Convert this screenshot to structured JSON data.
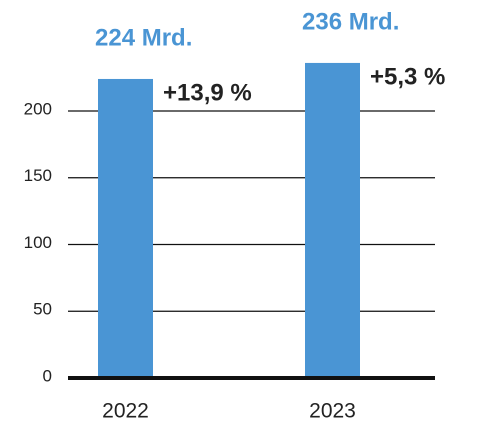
{
  "chart_data": {
    "type": "bar",
    "categories": [
      "2022",
      "2023"
    ],
    "values": [
      224,
      236
    ],
    "value_labels": [
      "224 Mrd.",
      "236 Mrd."
    ],
    "annotations": [
      "+13,9 %",
      "+5,3 %"
    ],
    "color": "#4a95d4",
    "ylim": [
      0,
      240
    ],
    "yticks": [
      0,
      50,
      100,
      150,
      200
    ],
    "grid": true
  }
}
